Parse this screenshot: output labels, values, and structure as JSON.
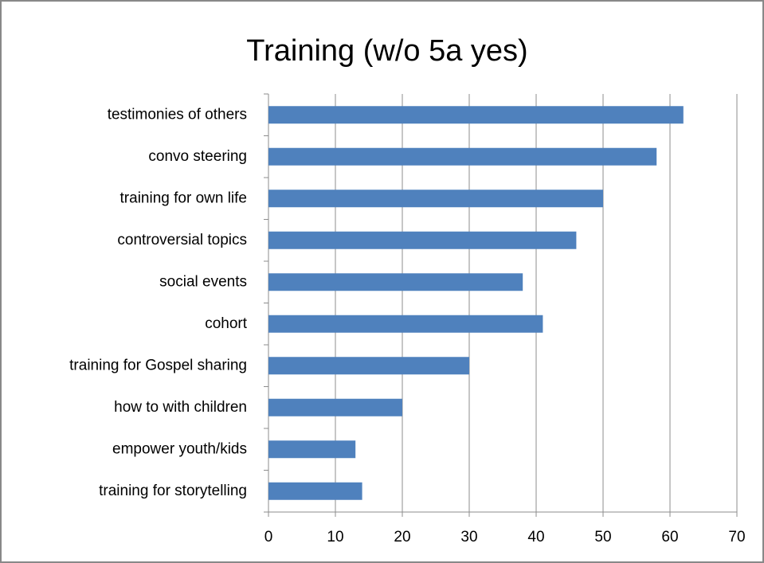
{
  "chart_data": {
    "type": "barh",
    "title": "Training (w/o 5a yes)",
    "categories": [
      "testimonies of others",
      "convo steering",
      "training for own life",
      "controversial topics",
      "social events",
      "cohort",
      "training for Gospel sharing",
      "how to with children",
      "empower youth/kids",
      "training for storytelling"
    ],
    "values": [
      62,
      58,
      50,
      46,
      38,
      41,
      30,
      20,
      13,
      14
    ],
    "color": "#4f81bd",
    "xlim": [
      0,
      70
    ],
    "xticks": [
      0,
      10,
      20,
      30,
      40,
      50,
      60,
      70
    ],
    "grid": true
  }
}
